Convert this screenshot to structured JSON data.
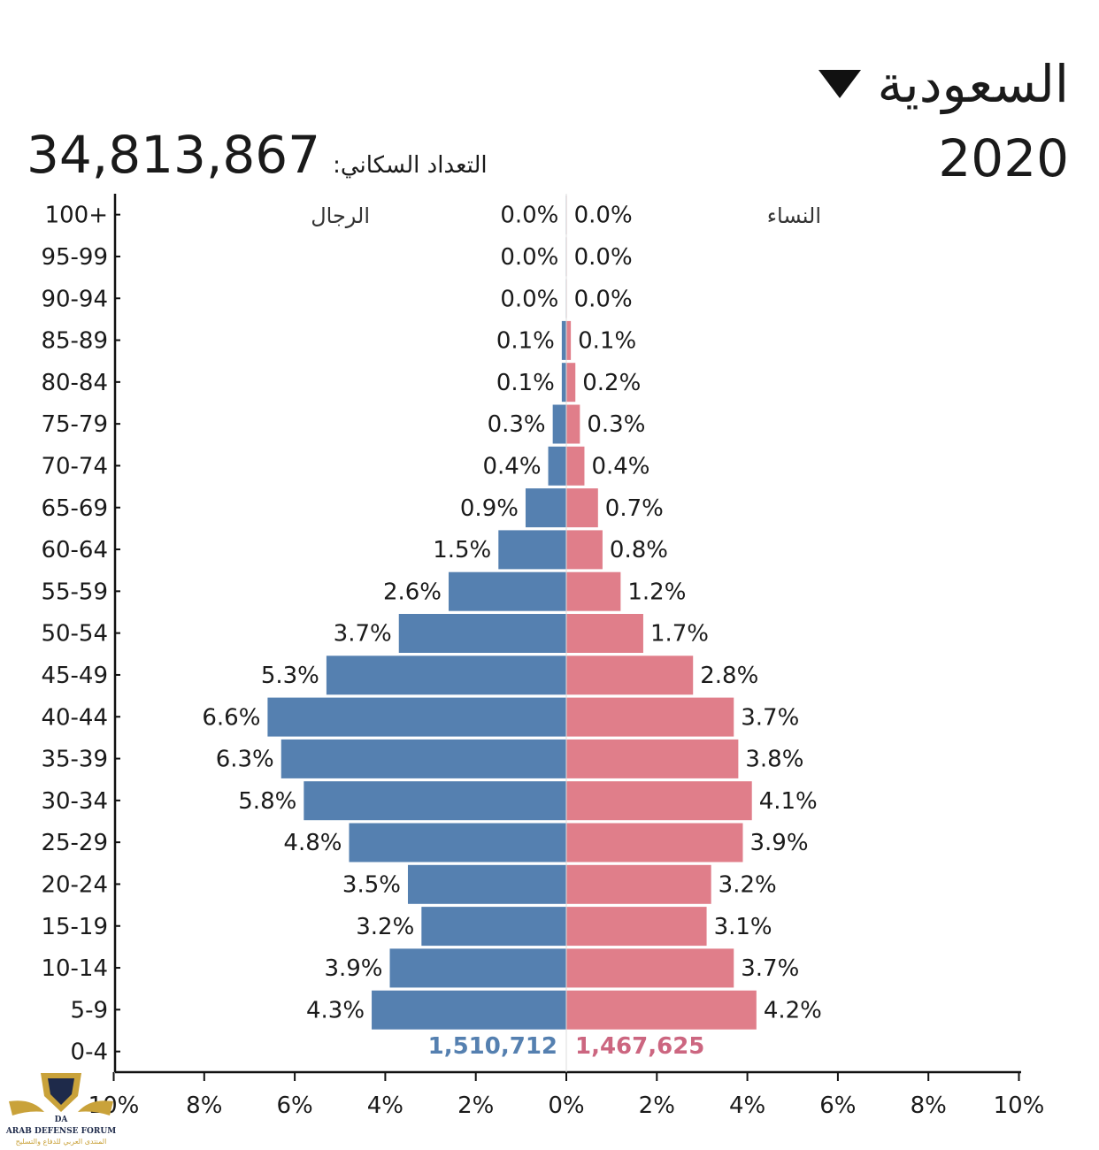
{
  "header": {
    "country": "السعودية",
    "year": "2020",
    "population_label": "التعداد السكاني:",
    "population_value": "34,813,867"
  },
  "legend": {
    "male_label": "الرجال",
    "female_label": "النساء"
  },
  "colors": {
    "male": "#5580b0",
    "female": "#e07e8a",
    "male_count": "#5580b0",
    "female_count": "#cc6680"
  },
  "watermark": {
    "line1": "ARAB DEFENSE FORUM",
    "line2": "المنتدى العربي للدفاع والتسليح",
    "logo_letters": "DA"
  },
  "chart_data": {
    "type": "bar",
    "orientation": "horizontal",
    "categories": [
      "100+",
      "95-99",
      "90-94",
      "85-89",
      "80-84",
      "75-79",
      "70-74",
      "65-69",
      "60-64",
      "55-59",
      "50-54",
      "45-49",
      "40-44",
      "35-39",
      "30-34",
      "25-29",
      "20-24",
      "15-19",
      "10-14",
      "5-9",
      "0-4"
    ],
    "series": [
      {
        "name": "الرجال",
        "values": [
          0.0,
          0.0,
          0.0,
          0.1,
          0.1,
          0.3,
          0.4,
          0.9,
          1.5,
          2.6,
          3.7,
          5.3,
          6.6,
          6.3,
          5.8,
          4.8,
          3.5,
          3.2,
          3.9,
          4.3,
          null
        ],
        "labels": [
          "0.0%",
          "0.0%",
          "0.0%",
          "0.1%",
          "0.1%",
          "0.3%",
          "0.4%",
          "0.9%",
          "1.5%",
          "2.6%",
          "3.7%",
          "5.3%",
          "6.6%",
          "6.3%",
          "5.8%",
          "4.8%",
          "3.5%",
          "3.2%",
          "3.9%",
          "4.3%",
          ""
        ]
      },
      {
        "name": "النساء",
        "values": [
          0.0,
          0.0,
          0.0,
          0.1,
          0.2,
          0.3,
          0.4,
          0.7,
          0.8,
          1.2,
          1.7,
          2.8,
          3.7,
          3.8,
          4.1,
          3.9,
          3.2,
          3.1,
          3.7,
          4.2,
          null
        ],
        "labels": [
          "0.0%",
          "0.0%",
          "0.0%",
          "0.1%",
          "0.2%",
          "0.3%",
          "0.4%",
          "0.7%",
          "0.8%",
          "1.2%",
          "1.7%",
          "2.8%",
          "3.7%",
          "3.8%",
          "4.1%",
          "3.9%",
          "3.2%",
          "3.1%",
          "3.7%",
          "4.2%",
          ""
        ]
      }
    ],
    "counts_0_4": {
      "male": "1,510,712",
      "female": "1,467,625"
    },
    "xlim": [
      -10,
      10
    ],
    "xticks": [
      "10%",
      "8%",
      "6%",
      "4%",
      "2%",
      "0%",
      "2%",
      "4%",
      "6%",
      "8%",
      "10%"
    ]
  }
}
